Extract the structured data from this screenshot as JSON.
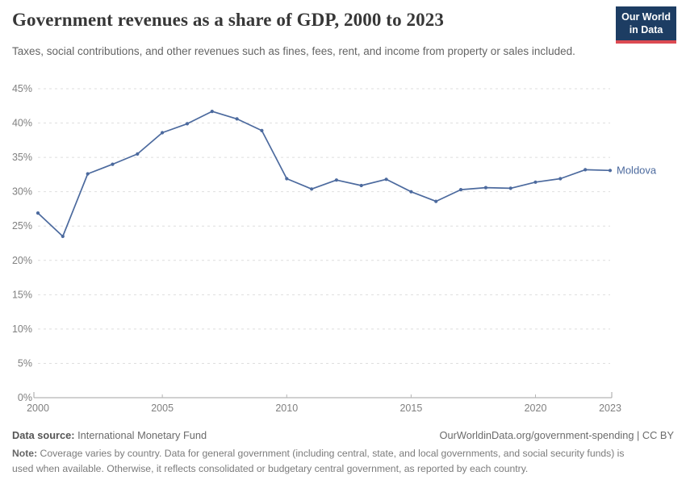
{
  "header": {
    "title": "Government revenues as a share of GDP, 2000 to 2023",
    "subtitle": "Taxes, social contributions, and other revenues such as fines, fees, rent, and income from property or sales included.",
    "logo": {
      "line1": "Our World",
      "line2": "in Data",
      "bg_color": "#1d3d63",
      "accent_color": "#dc4a52"
    }
  },
  "chart_data": {
    "type": "line",
    "title": "Government revenues as a share of GDP, 2000 to 2023",
    "xlabel": "",
    "ylabel": "",
    "xlim": [
      2000,
      2023
    ],
    "ylim": [
      0,
      45
    ],
    "x_ticks": [
      2000,
      2005,
      2010,
      2015,
      2020,
      2023
    ],
    "y_ticks": [
      0,
      5,
      10,
      15,
      20,
      25,
      30,
      35,
      40,
      45
    ],
    "y_tick_suffix": "%",
    "grid": "horizontal-dashed",
    "legend_position": "end-of-line-label",
    "x": [
      2000,
      2001,
      2002,
      2003,
      2004,
      2005,
      2006,
      2007,
      2008,
      2009,
      2010,
      2011,
      2012,
      2013,
      2014,
      2015,
      2016,
      2017,
      2018,
      2019,
      2020,
      2021,
      2022,
      2023
    ],
    "series": [
      {
        "name": "Moldova",
        "color": "#4c6a9e",
        "values": [
          26.9,
          23.5,
          32.6,
          34.0,
          35.5,
          38.6,
          39.9,
          41.7,
          40.6,
          38.9,
          31.9,
          30.4,
          31.7,
          30.9,
          31.8,
          30.0,
          28.6,
          30.3,
          30.6,
          30.5,
          31.4,
          31.9,
          33.2,
          33.1
        ]
      }
    ],
    "colors": {
      "gridline": "#dedede",
      "axis_line": "#a3a3a3",
      "tick_mark": "#b5b5b5",
      "tick_label": "#808080"
    }
  },
  "footer": {
    "datasource_label": "Data source:",
    "datasource_value": "International Monetary Fund",
    "license": "OurWorldinData.org/government-spending | CC BY",
    "note_label": "Note:",
    "note_text": "Coverage varies by country. Data for general government (including central, state, and local governments, and social security funds) is used when available. Otherwise, it reflects consolidated or budgetary central government, as reported by each country."
  }
}
